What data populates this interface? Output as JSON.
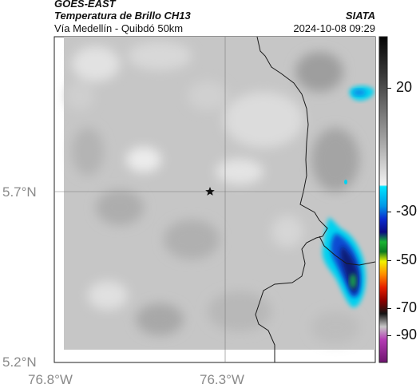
{
  "header": {
    "satellite": "GOES-EAST",
    "product": "Temperatura de Brillo CH13",
    "organization": "SIATA",
    "region": "Vía Medellín - Quibdó 50km",
    "datetime": "2024-10-08 09:29"
  },
  "map": {
    "lat_ticks": [
      {
        "value": 5.7,
        "label": "5.7°N"
      },
      {
        "value": 5.2,
        "label": "5.2°N"
      }
    ],
    "lon_ticks": [
      {
        "value": -76.8,
        "label": "76.8°W"
      },
      {
        "value": -76.3,
        "label": "76.3°W"
      }
    ],
    "marker_icon": "star-icon",
    "gridlines": true
  },
  "colorbar": {
    "ticks": [
      {
        "value": 20,
        "label": "20"
      },
      {
        "value": -30,
        "label": "-30"
      },
      {
        "value": -50,
        "label": "-50"
      },
      {
        "value": -70,
        "label": "-70"
      },
      {
        "value": -90,
        "label": "-90"
      }
    ]
  },
  "colors": {
    "land_gray": "#c8c8c8",
    "cloud_cyan": "#00d2f0",
    "cloud_blue": "#0a4bd2",
    "cloud_navy": "#0a1a78",
    "cloud_green": "#1fa34a"
  }
}
